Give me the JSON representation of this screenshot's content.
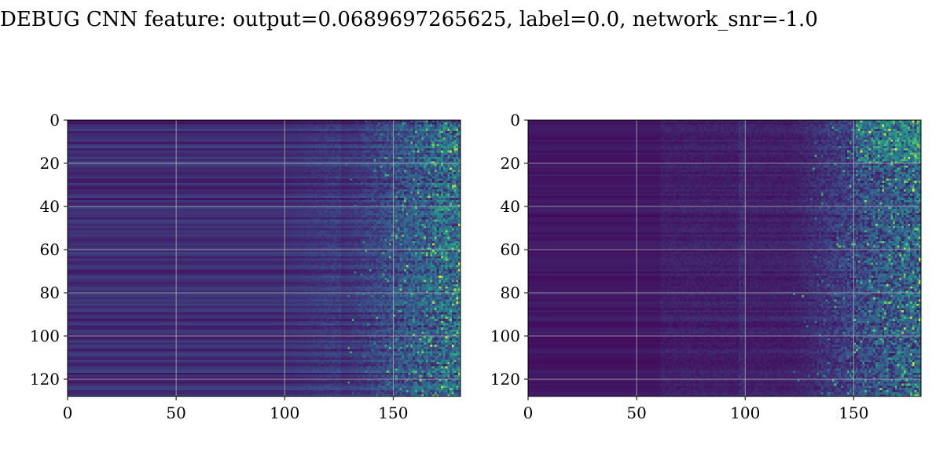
{
  "figure": {
    "title": "DEBUG CNN feature: output=0.0689697265625, label=0.0, network_snr=-1.0"
  },
  "chart_data": [
    {
      "type": "heatmap",
      "title": "",
      "xlabel": "",
      "ylabel": "",
      "xlim": [
        0,
        181
      ],
      "ylim": [
        128,
        0
      ],
      "x_ticks": [
        0,
        50,
        100,
        150
      ],
      "y_ticks": [
        0,
        20,
        40,
        60,
        80,
        100,
        120
      ],
      "grid": true,
      "colormap": "viridis",
      "dimensions": {
        "cols": 181,
        "rows": 128
      },
      "structure": "dark-purple low values across most columns; brighter horizontal streaks increasing toward high column indices; yellow-green speckles concentrated beyond column ~130"
    },
    {
      "type": "heatmap",
      "title": "",
      "xlabel": "",
      "ylabel": "",
      "xlim": [
        0,
        181
      ],
      "ylim": [
        128,
        0
      ],
      "x_ticks": [
        0,
        50,
        100,
        150
      ],
      "y_ticks": [
        0,
        20,
        40,
        60,
        80,
        100,
        120
      ],
      "grid": true,
      "colormap": "viridis",
      "dimensions": {
        "cols": 181,
        "rows": 128
      },
      "structure": "dark-purple background with faint vertical band near column ~98; brighter streaks and yellow speckles concentrated beyond column ~140, strongest near rows 0-20"
    }
  ],
  "colors": {
    "low": "#440154",
    "mid": "#21918c",
    "high": "#fde725",
    "grid": "#b0b0b0"
  }
}
